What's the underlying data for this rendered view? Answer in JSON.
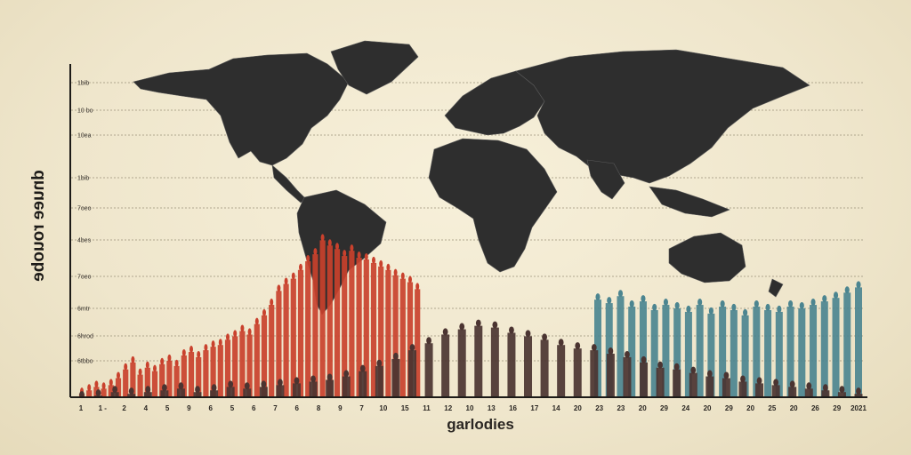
{
  "chart_data": {
    "type": "bar",
    "title": "",
    "ylabel": "dnuee rouobe",
    "xlabel": "garlodies",
    "yticks": [
      "1bib",
      "10 bo",
      "10ea",
      "1bib",
      "7oeo",
      "4bes",
      "7oeo",
      "6mtr",
      "6hrod",
      "6tbbo"
    ],
    "xticks": [
      "1",
      "1 -",
      "2",
      "4",
      "5",
      "9",
      "6",
      "5",
      "6",
      "7",
      "6",
      "8",
      "9",
      "7",
      "10",
      "15",
      "11",
      "12",
      "10",
      "13",
      "16",
      "17",
      "14",
      "20",
      "23",
      "23",
      "20",
      "29",
      "24",
      "20",
      "29",
      "20",
      "25",
      "20",
      "26",
      "29",
      "2021"
    ],
    "ylim": [
      0,
      10
    ],
    "series": [
      {
        "values": [
          0.5,
          0.7,
          0.9,
          0.8,
          1.0,
          1.4,
          1.9,
          2.3,
          1.6,
          2.0,
          1.8,
          2.2,
          2.4,
          2.1,
          2.7,
          2.9,
          2.6,
          3.0,
          3.2,
          3.3,
          3.6,
          3.8,
          4.1,
          3.9,
          4.5,
          5.0,
          5.6,
          6.4,
          6.8,
          7.1,
          7.6,
          8.1,
          8.5,
          9.3,
          9.0,
          8.8,
          8.4,
          8.7,
          8.3,
          8.2,
          8.0,
          7.8,
          7.6,
          7.3,
          7.1,
          6.9,
          6.5
        ]
      },
      {
        "values": [
          5.9,
          5.7,
          6.1,
          5.5,
          5.8,
          5.3,
          5.6,
          5.4,
          5.2,
          5.6,
          5.1,
          5.5,
          5.3,
          5.0,
          5.5,
          5.3,
          5.2,
          5.5,
          5.4,
          5.6,
          5.8,
          6.0,
          6.3,
          6.6
        ]
      },
      {
        "values": [
          0.3,
          0.4,
          0.6,
          0.5,
          0.6,
          0.7,
          0.8,
          0.6,
          0.7,
          0.9,
          0.8,
          0.9,
          1.0,
          1.1,
          1.2,
          1.3,
          1.5,
          1.8,
          2.1,
          2.5,
          3.0,
          3.4,
          3.9,
          4.2,
          4.4,
          4.3,
          4.0,
          3.8,
          3.6,
          3.3,
          3.1,
          3.0,
          2.8,
          2.6,
          2.3,
          2.0,
          1.9,
          1.7,
          1.5,
          1.4,
          1.2,
          1.1,
          1.0,
          0.9,
          0.8,
          0.7,
          0.6,
          0.5
        ]
      }
    ],
    "colors": {
      "red": "#c9412d",
      "teal": "#4c8590",
      "dark": "#4b3431",
      "map": "#2e2e2e",
      "axis": "#1d1b18"
    }
  }
}
